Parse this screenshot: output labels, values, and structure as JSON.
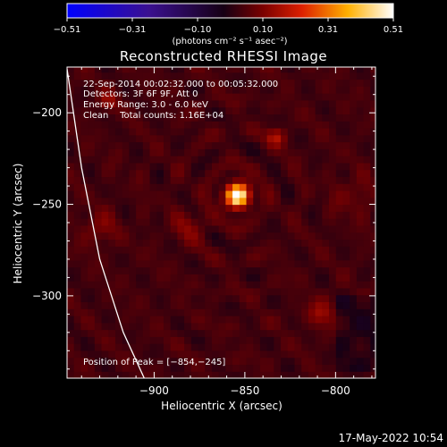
{
  "chart_data": {
    "type": "heatmap",
    "title": "Reconstructed RHESSI Image",
    "xlabel": "Heliocentric X (arcsec)",
    "ylabel": "Heliocentric Y (arcsec)",
    "xlim": [
      -948,
      -778
    ],
    "ylim": [
      -345,
      -175
    ],
    "x_ticks": [
      -900,
      -850,
      -800
    ],
    "x_tick_labels": [
      "−900",
      "−850",
      "−800"
    ],
    "y_ticks": [
      -200,
      -250,
      -300
    ],
    "y_tick_labels": [
      "−200",
      "−250",
      "−300"
    ],
    "colorbar": {
      "range": [
        -0.51,
        0.51
      ],
      "tick_labels": [
        "−0.51",
        "−0.31",
        "−0.10",
        "0.10",
        "0.31",
        "0.51"
      ],
      "unit_label": "(photons cm⁻² s⁻¹ asec⁻²)",
      "colormap": "blue-purple-red-yellow-white"
    },
    "annotations": [
      "22-Sep-2014 00:02:32.000 to 00:05:32.000",
      "Detectors: 3F 6F 9F, Att 0",
      "Energy Range: 3.0 - 6.0 keV",
      "Clean    Total counts: 1.16E+04"
    ],
    "peak_label": "Position of Peak = [−854,−245]",
    "peak": {
      "x": -854,
      "y": -245,
      "value": 0.51
    },
    "sources": [
      {
        "x": -854,
        "y": -245,
        "sigma": 4.5,
        "amp": 0.5
      },
      {
        "x": -833,
        "y": -213,
        "sigma": 3.5,
        "amp": 0.12
      },
      {
        "x": -925,
        "y": -193,
        "sigma": 3.5,
        "amp": 0.1
      },
      {
        "x": -808,
        "y": -310,
        "sigma": 5.0,
        "amp": 0.1
      },
      {
        "x": -880,
        "y": -262,
        "sigma": 6.0,
        "amp": 0.07
      },
      {
        "x": -930,
        "y": -263,
        "sigma": 6.0,
        "amp": 0.07
      },
      {
        "x": -790,
        "y": -245,
        "sigma": 7.0,
        "amp": 0.05
      }
    ],
    "limb_curve": [
      [
        -948,
        -176
      ],
      [
        -940,
        -230
      ],
      [
        -930,
        -280
      ],
      [
        -917,
        -320
      ],
      [
        -905,
        -346
      ]
    ]
  },
  "footer_timestamp": "17-May-2022 10:54",
  "colors": {
    "background": "#000000",
    "foreground": "#ffffff"
  }
}
